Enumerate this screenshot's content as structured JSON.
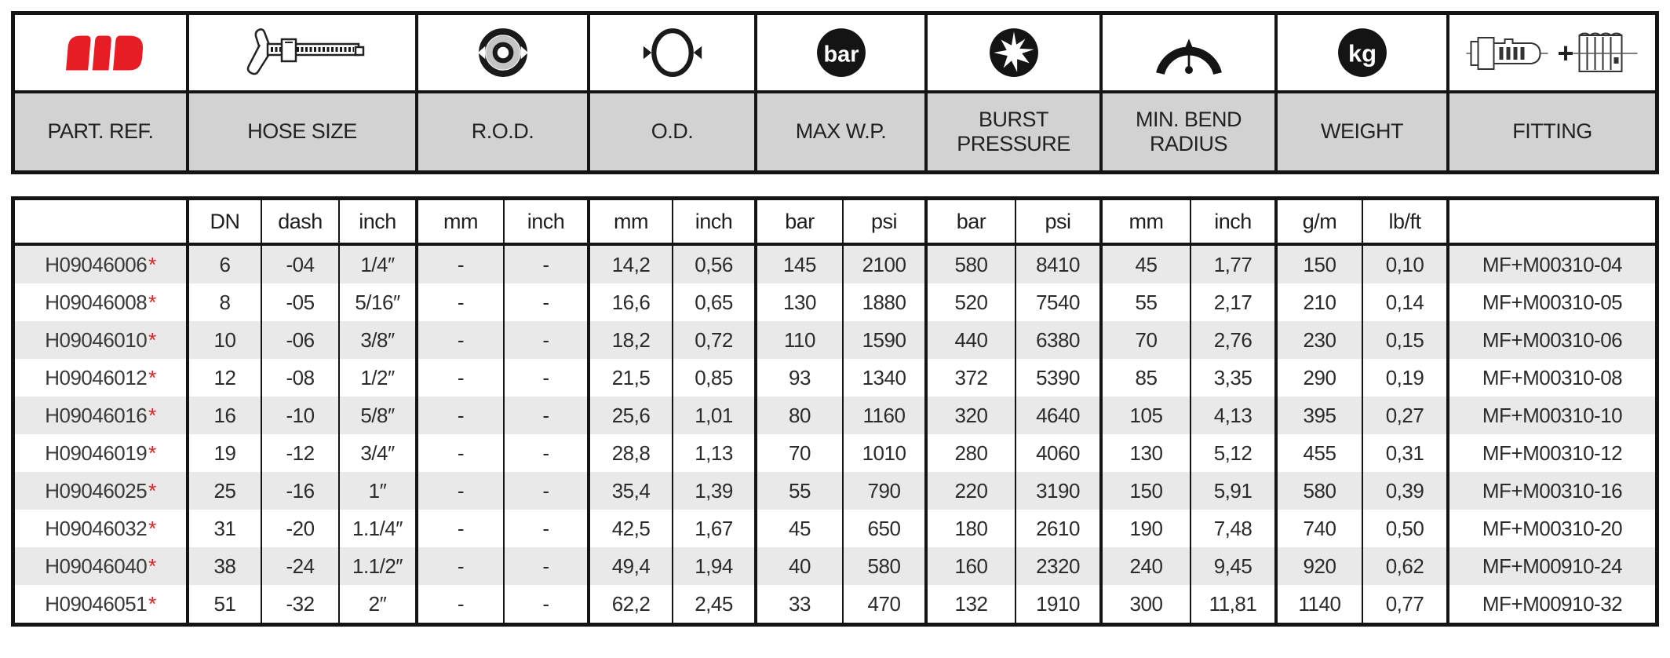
{
  "header": {
    "groups": [
      {
        "icon": "manuli-logo-icon",
        "label": "PART. REF."
      },
      {
        "icon": "caliper-icon",
        "label": "HOSE SIZE"
      },
      {
        "icon": "rod-cross-section-icon",
        "label": "R.O.D."
      },
      {
        "icon": "outer-diameter-icon",
        "label": "O.D."
      },
      {
        "icon": "bar-pressure-icon",
        "label": "MAX W.P."
      },
      {
        "icon": "burst-pressure-icon",
        "label": "BURST PRESSURE"
      },
      {
        "icon": "bend-radius-icon",
        "label": "MIN. BEND RADIUS"
      },
      {
        "icon": "kg-weight-icon",
        "label": "WEIGHT"
      },
      {
        "icon": "fitting-plus-ferrule-icon",
        "label": "FITTING"
      }
    ]
  },
  "table": {
    "unit_headers": [
      "",
      "DN",
      "dash",
      "inch",
      "mm",
      "inch",
      "mm",
      "inch",
      "bar",
      "psi",
      "bar",
      "psi",
      "mm",
      "inch",
      "g/m",
      "lb/ft",
      ""
    ],
    "rows": [
      {
        "part_ref": "H09046006",
        "note_mark": "*",
        "values": [
          "6",
          "-04",
          "1/4″",
          "-",
          "-",
          "14,2",
          "0,56",
          "145",
          "2100",
          "580",
          "8410",
          "45",
          "1,77",
          "150",
          "0,10"
        ],
        "fitting": "MF+M00310-04"
      },
      {
        "part_ref": "H09046008",
        "note_mark": "*",
        "values": [
          "8",
          "-05",
          "5/16″",
          "-",
          "-",
          "16,6",
          "0,65",
          "130",
          "1880",
          "520",
          "7540",
          "55",
          "2,17",
          "210",
          "0,14"
        ],
        "fitting": "MF+M00310-05"
      },
      {
        "part_ref": "H09046010",
        "note_mark": "*",
        "values": [
          "10",
          "-06",
          "3/8″",
          "-",
          "-",
          "18,2",
          "0,72",
          "110",
          "1590",
          "440",
          "6380",
          "70",
          "2,76",
          "230",
          "0,15"
        ],
        "fitting": "MF+M00310-06"
      },
      {
        "part_ref": "H09046012",
        "note_mark": "*",
        "values": [
          "12",
          "-08",
          "1/2″",
          "-",
          "-",
          "21,5",
          "0,85",
          "93",
          "1340",
          "372",
          "5390",
          "85",
          "3,35",
          "290",
          "0,19"
        ],
        "fitting": "MF+M00310-08"
      },
      {
        "part_ref": "H09046016",
        "note_mark": "*",
        "values": [
          "16",
          "-10",
          "5/8″",
          "-",
          "-",
          "25,6",
          "1,01",
          "80",
          "1160",
          "320",
          "4640",
          "105",
          "4,13",
          "395",
          "0,27"
        ],
        "fitting": "MF+M00310-10"
      },
      {
        "part_ref": "H09046019",
        "note_mark": "*",
        "values": [
          "19",
          "-12",
          "3/4″",
          "-",
          "-",
          "28,8",
          "1,13",
          "70",
          "1010",
          "280",
          "4060",
          "130",
          "5,12",
          "455",
          "0,31"
        ],
        "fitting": "MF+M00310-12"
      },
      {
        "part_ref": "H09046025",
        "note_mark": "*",
        "values": [
          "25",
          "-16",
          "1″",
          "-",
          "-",
          "35,4",
          "1,39",
          "55",
          "790",
          "220",
          "3190",
          "150",
          "5,91",
          "580",
          "0,39"
        ],
        "fitting": "MF+M00310-16"
      },
      {
        "part_ref": "H09046032",
        "note_mark": "*",
        "values": [
          "31",
          "-20",
          "1.1/4″",
          "-",
          "-",
          "42,5",
          "1,67",
          "45",
          "650",
          "180",
          "2610",
          "190",
          "7,48",
          "740",
          "0,50"
        ],
        "fitting": "MF+M00310-20"
      },
      {
        "part_ref": "H09046040",
        "note_mark": "*",
        "values": [
          "38",
          "-24",
          "1.1/2″",
          "-",
          "-",
          "49,4",
          "1,94",
          "40",
          "580",
          "160",
          "2320",
          "240",
          "9,45",
          "920",
          "0,62"
        ],
        "fitting": "MF+M00910-24"
      },
      {
        "part_ref": "H09046051",
        "note_mark": "*",
        "values": [
          "51",
          "-32",
          "2″",
          "-",
          "-",
          "62,2",
          "2,45",
          "33",
          "470",
          "132",
          "1910",
          "300",
          "11,81",
          "1140",
          "0,77"
        ],
        "fitting": "MF+M00910-32"
      }
    ]
  },
  "icon_text": {
    "max_wp_badge": "bar",
    "weight_badge": "kg",
    "fitting_plus": "+"
  },
  "colors": {
    "accent_red": "#e81c24",
    "header_label_bg": "#d2d2d2",
    "row_alt_bg": "#e9e9e9",
    "border": "#141414"
  }
}
